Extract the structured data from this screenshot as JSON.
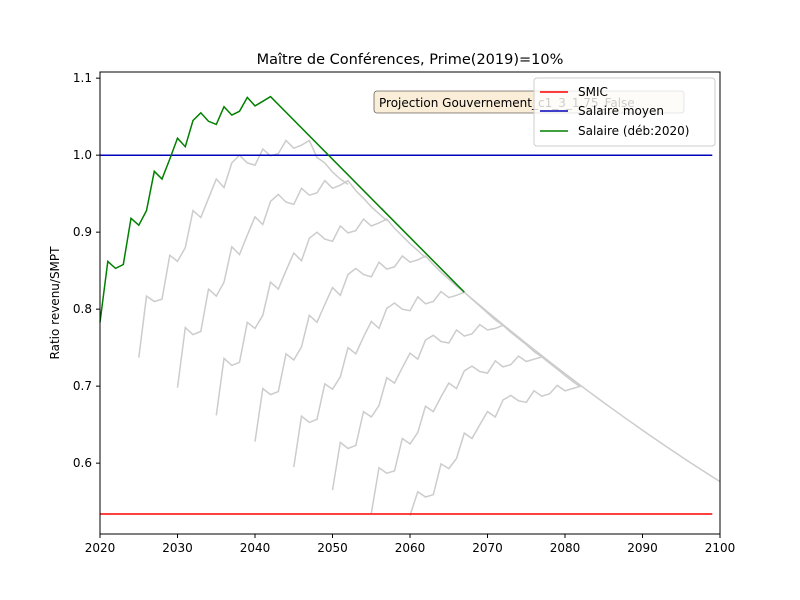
{
  "chart_data": {
    "type": "line",
    "title": "Maître de Conférences, Prime(2019)=10%",
    "xlabel": "",
    "ylabel": "Ratio revenu/SMPT",
    "xlim": [
      2020,
      2100
    ],
    "ylim": [
      0.508,
      1.108
    ],
    "xticks": [
      2020,
      2030,
      2040,
      2050,
      2060,
      2070,
      2080,
      2090,
      2100
    ],
    "yticks": [
      0.6,
      0.7,
      0.8,
      0.9,
      1.0,
      1.1
    ],
    "yticklabels": [
      "0.6",
      "0.7",
      "0.8",
      "0.9",
      "1.0",
      "1.1"
    ],
    "grid": false,
    "legend_position": "top-right",
    "annotation": "Projection Gouvernement_c1_3_1.75_False",
    "colors": {
      "smic": "#ff0000",
      "moyen": "#0000bb",
      "salaire": "#008000",
      "gray": "#cccccc"
    },
    "series": [
      {
        "name": "SMIC",
        "x": [
          2020,
          2099
        ],
        "y": [
          0.534,
          0.534
        ]
      },
      {
        "name": "Salaire moyen",
        "x": [
          2020,
          2099
        ],
        "y": [
          1.0,
          1.0
        ]
      },
      {
        "name": "Salaire (déb:2020)",
        "x": [
          2020,
          2021,
          2022,
          2023,
          2024,
          2025,
          2026,
          2027,
          2028,
          2029,
          2030,
          2031,
          2032,
          2033,
          2034,
          2035,
          2036,
          2037,
          2038,
          2039,
          2040,
          2041,
          2042,
          2067
        ],
        "y": [
          0.783,
          0.862,
          0.853,
          0.858,
          0.918,
          0.909,
          0.928,
          0.979,
          0.969,
          0.995,
          1.022,
          1.011,
          1.045,
          1.055,
          1.044,
          1.04,
          1.063,
          1.052,
          1.057,
          1.075,
          1.064,
          1.07,
          1.076,
          0.822
        ]
      }
    ],
    "other_cohorts": [
      {
        "start": 2025,
        "x": [
          2025,
          2026,
          2027,
          2028,
          2029,
          2030,
          2031,
          2032,
          2033,
          2034,
          2035,
          2036,
          2037,
          2038,
          2039,
          2040,
          2041,
          2042,
          2043,
          2044,
          2045,
          2046,
          2047,
          2048,
          2049,
          2050,
          2051,
          2052
        ],
        "y": [
          0.737,
          0.817,
          0.81,
          0.813,
          0.87,
          0.862,
          0.88,
          0.928,
          0.919,
          0.944,
          0.969,
          0.958,
          0.99,
          1.0,
          0.99,
          0.987,
          1.008,
          0.999,
          1.002,
          1.019,
          1.009,
          1.013,
          1.019,
          0.997,
          0.99,
          0.978,
          0.969,
          0.962
        ]
      },
      {
        "start": 2030,
        "x": [
          2030,
          2031,
          2032,
          2033,
          2034,
          2035,
          2036,
          2037,
          2038,
          2039,
          2040,
          2041,
          2042,
          2043,
          2044,
          2045,
          2046,
          2047,
          2048,
          2049,
          2050,
          2051,
          2052,
          2053,
          2054,
          2055,
          2056,
          2057
        ],
        "y": [
          0.698,
          0.776,
          0.767,
          0.771,
          0.826,
          0.817,
          0.835,
          0.881,
          0.871,
          0.896,
          0.92,
          0.91,
          0.94,
          0.949,
          0.939,
          0.936,
          0.957,
          0.948,
          0.951,
          0.967,
          0.957,
          0.961,
          0.967,
          0.954,
          0.944,
          0.933,
          0.924,
          0.915
        ]
      },
      {
        "start": 2035,
        "x": [
          2035,
          2036,
          2037,
          2038,
          2039,
          2040,
          2041,
          2042,
          2043,
          2044,
          2045,
          2046,
          2047,
          2048,
          2049,
          2050,
          2051,
          2052,
          2053,
          2054,
          2055,
          2056,
          2057,
          2058,
          2059,
          2060,
          2061,
          2062
        ],
        "y": [
          0.662,
          0.736,
          0.727,
          0.731,
          0.783,
          0.775,
          0.792,
          0.835,
          0.826,
          0.85,
          0.873,
          0.863,
          0.892,
          0.9,
          0.891,
          0.888,
          0.908,
          0.899,
          0.902,
          0.917,
          0.908,
          0.912,
          0.917,
          0.905,
          0.895,
          0.885,
          0.876,
          0.867
        ]
      },
      {
        "start": 2040,
        "x": [
          2040,
          2041,
          2042,
          2043,
          2044,
          2045,
          2046,
          2047,
          2048,
          2049,
          2050,
          2051,
          2052,
          2053,
          2054,
          2055,
          2056,
          2057,
          2058,
          2059,
          2060,
          2061,
          2062,
          2063,
          2064,
          2065,
          2066,
          2067
        ],
        "y": [
          0.628,
          0.697,
          0.689,
          0.693,
          0.742,
          0.734,
          0.751,
          0.792,
          0.783,
          0.806,
          0.828,
          0.818,
          0.845,
          0.853,
          0.845,
          0.842,
          0.861,
          0.852,
          0.855,
          0.869,
          0.861,
          0.864,
          0.869,
          0.858,
          0.848,
          0.839,
          0.83,
          0.822
        ]
      },
      {
        "start": 2045,
        "x": [
          2045,
          2046,
          2047,
          2048,
          2049,
          2050,
          2051,
          2052,
          2053,
          2054,
          2055,
          2056,
          2057,
          2058,
          2059,
          2060,
          2061,
          2062,
          2063,
          2064,
          2065,
          2066,
          2067,
          2068,
          2069,
          2070,
          2071,
          2072
        ],
        "y": [
          0.595,
          0.661,
          0.653,
          0.657,
          0.703,
          0.696,
          0.712,
          0.75,
          0.742,
          0.764,
          0.784,
          0.775,
          0.801,
          0.808,
          0.8,
          0.798,
          0.816,
          0.807,
          0.81,
          0.823,
          0.815,
          0.818,
          0.822,
          0.813,
          0.804,
          0.795,
          0.786,
          0.779
        ]
      },
      {
        "start": 2050,
        "x": [
          2050,
          2051,
          2052,
          2053,
          2054,
          2055,
          2056,
          2057,
          2058,
          2059,
          2060,
          2061,
          2062,
          2063,
          2064,
          2065,
          2066,
          2067,
          2068,
          2069,
          2070,
          2071,
          2072,
          2073,
          2074,
          2075,
          2076,
          2077
        ],
        "y": [
          0.565,
          0.627,
          0.619,
          0.623,
          0.667,
          0.66,
          0.675,
          0.711,
          0.704,
          0.724,
          0.743,
          0.735,
          0.76,
          0.766,
          0.758,
          0.756,
          0.773,
          0.765,
          0.768,
          0.78,
          0.773,
          0.775,
          0.779,
          0.77,
          0.762,
          0.754,
          0.745,
          0.738
        ]
      },
      {
        "start": 2055,
        "x": [
          2055,
          2056,
          2057,
          2058,
          2059,
          2060,
          2061,
          2062,
          2063,
          2064,
          2065,
          2066,
          2067,
          2068,
          2069,
          2070,
          2071,
          2072,
          2073,
          2074,
          2075,
          2076,
          2077,
          2078,
          2079,
          2080,
          2081,
          2082
        ],
        "y": [
          0.535,
          0.594,
          0.587,
          0.59,
          0.632,
          0.625,
          0.64,
          0.674,
          0.667,
          0.686,
          0.704,
          0.697,
          0.72,
          0.726,
          0.719,
          0.717,
          0.733,
          0.725,
          0.728,
          0.739,
          0.732,
          0.735,
          0.738,
          0.73,
          0.722,
          0.714,
          0.706,
          0.699
        ]
      },
      {
        "start": 2060,
        "x": [
          2060,
          2061,
          2062,
          2063,
          2064,
          2065,
          2066,
          2067,
          2068,
          2069,
          2070,
          2071,
          2072,
          2073,
          2074,
          2075,
          2076,
          2077,
          2078,
          2079,
          2080,
          2081,
          2082
        ],
        "y": [
          0.532,
          0.563,
          0.556,
          0.559,
          0.599,
          0.593,
          0.606,
          0.639,
          0.632,
          0.65,
          0.667,
          0.66,
          0.682,
          0.688,
          0.681,
          0.679,
          0.694,
          0.687,
          0.69,
          0.701,
          0.694,
          0.697,
          0.7
        ]
      }
    ],
    "decay_tail": {
      "x_start": 2067,
      "x_end": 2100,
      "y_start": 0.822,
      "y_end": 0.576
    }
  }
}
